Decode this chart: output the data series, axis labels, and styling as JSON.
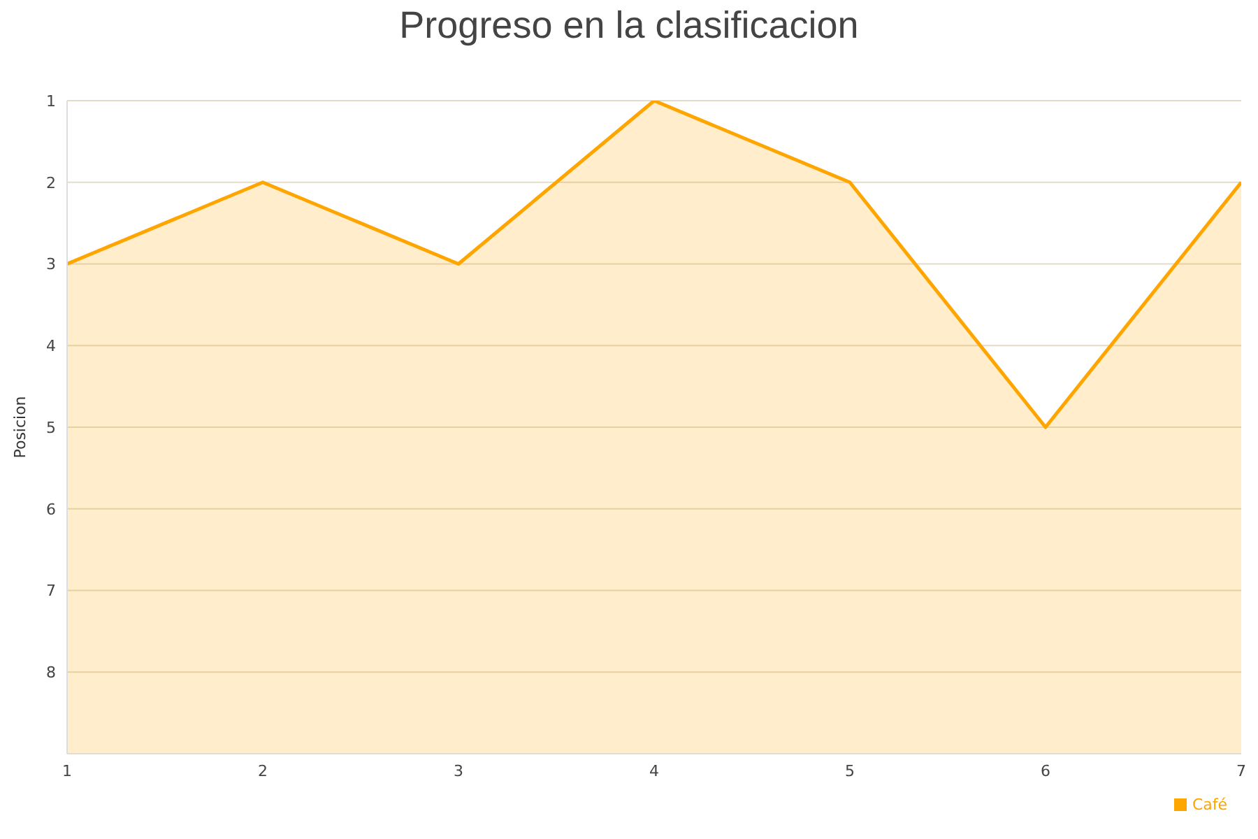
{
  "chart_data": {
    "type": "line",
    "title": "Progreso en la clasificacion",
    "ylabel": "Posicion",
    "x": [
      1,
      2,
      3,
      4,
      5,
      6,
      7
    ],
    "series": [
      {
        "name": "Café",
        "color": "#ffa500",
        "values": [
          3,
          2,
          3,
          1,
          2,
          5,
          2
        ],
        "lower": [
          9,
          9,
          9,
          9,
          9,
          9,
          9
        ],
        "upper": [
          3,
          2,
          3,
          1,
          2,
          5,
          2
        ]
      }
    ],
    "xlim": [
      1,
      7
    ],
    "xticks": [
      1,
      2,
      3,
      4,
      5,
      6,
      7
    ],
    "ylim": [
      9,
      1
    ],
    "yticks": [
      1,
      2,
      3,
      4,
      5,
      6,
      7,
      8
    ],
    "grid": "y",
    "legend": "bottom right"
  }
}
